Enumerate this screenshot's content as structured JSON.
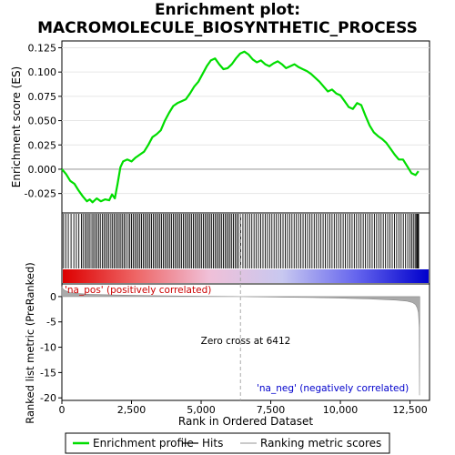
{
  "title_line1": "Enrichment plot:",
  "title_line2": "MACROMOLECULE_BIOSYNTHETIC_PROCESS",
  "colors": {
    "profile": "#00dd00",
    "hits": "#000000",
    "pos_label": "#cc0000",
    "neg_label": "#0000cc",
    "metric_fill": "#aaaaaa",
    "zero_line": "#aaaaaa"
  },
  "chart_data": [
    {
      "type": "line",
      "name": "enrichment-profile",
      "ylabel": "Enrichment score (ES)",
      "xlim": [
        0,
        13200
      ],
      "ylim": [
        -0.045,
        0.132
      ],
      "yticks": [
        -0.025,
        0.0,
        0.025,
        0.05,
        0.075,
        0.1,
        0.125
      ],
      "ytick_labels": [
        "-0.025",
        "0.000",
        "0.025",
        "0.050",
        "0.075",
        "0.100",
        "0.125"
      ],
      "series": [
        {
          "name": "Enrichment profile",
          "x": [
            0,
            150,
            300,
            450,
            600,
            750,
            900,
            1000,
            1100,
            1250,
            1400,
            1550,
            1700,
            1800,
            1900,
            2000,
            2100,
            2200,
            2350,
            2500,
            2650,
            2800,
            2950,
            3100,
            3250,
            3400,
            3550,
            3700,
            3850,
            4000,
            4150,
            4300,
            4450,
            4600,
            4750,
            4900,
            5050,
            5200,
            5350,
            5500,
            5650,
            5800,
            5950,
            6100,
            6250,
            6400,
            6550,
            6700,
            6850,
            7000,
            7150,
            7300,
            7450,
            7600,
            7750,
            7900,
            8050,
            8200,
            8350,
            8500,
            8650,
            8800,
            8950,
            9100,
            9250,
            9400,
            9550,
            9700,
            9850,
            10000,
            10150,
            10300,
            10450,
            10600,
            10750,
            10900,
            11050,
            11200,
            11350,
            11500,
            11650,
            11800,
            11950,
            12100,
            12250,
            12400,
            12550,
            12700,
            12800
          ],
          "y": [
            0.0,
            -0.005,
            -0.012,
            -0.015,
            -0.022,
            -0.028,
            -0.033,
            -0.031,
            -0.034,
            -0.03,
            -0.033,
            -0.031,
            -0.032,
            -0.026,
            -0.03,
            -0.015,
            0.002,
            0.008,
            0.01,
            0.008,
            0.012,
            0.015,
            0.018,
            0.025,
            0.033,
            0.036,
            0.04,
            0.05,
            0.058,
            0.065,
            0.068,
            0.07,
            0.072,
            0.078,
            0.085,
            0.09,
            0.098,
            0.106,
            0.112,
            0.114,
            0.108,
            0.103,
            0.104,
            0.108,
            0.114,
            0.119,
            0.121,
            0.118,
            0.113,
            0.11,
            0.112,
            0.108,
            0.106,
            0.109,
            0.111,
            0.108,
            0.104,
            0.106,
            0.108,
            0.105,
            0.103,
            0.101,
            0.098,
            0.094,
            0.09,
            0.085,
            0.08,
            0.082,
            0.078,
            0.076,
            0.07,
            0.064,
            0.062,
            0.068,
            0.066,
            0.055,
            0.045,
            0.038,
            0.034,
            0.031,
            0.027,
            0.021,
            0.015,
            0.01,
            0.01,
            0.003,
            -0.004,
            -0.006,
            -0.002
          ]
        }
      ]
    },
    {
      "type": "heatmap",
      "name": "hits-and-rank-colorbar",
      "hit_positions": [
        5,
        60,
        140,
        230,
        330,
        430,
        520,
        610,
        700,
        760,
        830,
        890,
        950,
        1010,
        1080,
        1140,
        1200,
        1260,
        1320,
        1380,
        1450,
        1510,
        1570,
        1630,
        1690,
        1760,
        1820,
        1880,
        1940,
        2000,
        2060,
        2120,
        2180,
        2240,
        2300,
        2380,
        2440,
        2500,
        2560,
        2620,
        2680,
        2740,
        2800,
        2860,
        2920,
        2980,
        3040,
        3100,
        3160,
        3220,
        3280,
        3340,
        3400,
        3460,
        3520,
        3580,
        3640,
        3700,
        3760,
        3820,
        3880,
        3940,
        4000,
        4060,
        4120,
        4180,
        4240,
        4300,
        4360,
        4420,
        4480,
        4540,
        4600,
        4660,
        4720,
        4780,
        4840,
        4900,
        4960,
        5020,
        5080,
        5140,
        5200,
        5260,
        5320,
        5380,
        5440,
        5500,
        5560,
        5620,
        5680,
        5740,
        5800,
        5860,
        5920,
        5980,
        6040,
        6100,
        6160,
        6220,
        6280,
        6340,
        6420,
        6500,
        6580,
        6660,
        6740,
        6820,
        6900,
        6980,
        7060,
        7140,
        7220,
        7300,
        7380,
        7460,
        7540,
        7620,
        7700,
        7780,
        7860,
        7940,
        8020,
        8100,
        8180,
        8260,
        8340,
        8420,
        8500,
        8580,
        8660,
        8740,
        8820,
        8900,
        8980,
        9060,
        9140,
        9220,
        9300,
        9380,
        9460,
        9540,
        9620,
        9700,
        9780,
        9860,
        9940,
        10020,
        10100,
        10180,
        10260,
        10340,
        10420,
        10500,
        10580,
        10660,
        10740,
        10820,
        10900,
        10980,
        11060,
        11140,
        11220,
        11300,
        11380,
        11460,
        11540,
        11620,
        11700,
        11780,
        11860,
        11940,
        12020,
        12100,
        12180,
        12260,
        12340,
        12420,
        12500,
        12560,
        12620,
        12680,
        12720,
        12760,
        12790,
        12810
      ],
      "rank_gradient": [
        "#dd0000",
        "#ee6666",
        "#f0c0d8",
        "#c8c8f0",
        "#6666ee",
        "#0000cc"
      ],
      "xlim": [
        0,
        13200
      ]
    },
    {
      "type": "area",
      "name": "ranked-list-metric",
      "ylabel": "Ranked list metric (PreRanked)",
      "xlabel": "Rank in Ordered Dataset",
      "xlim": [
        0,
        13200
      ],
      "ylim": [
        -20.5,
        2.5
      ],
      "yticks": [
        0,
        -5,
        -10,
        -15,
        -20
      ],
      "ytick_labels": [
        "0",
        "-5",
        "-10",
        "-15",
        "-20"
      ],
      "xticks": [
        0,
        2500,
        5000,
        7500,
        10000,
        12500
      ],
      "xtick_labels": [
        "0",
        "2,500",
        "5,000",
        "7,500",
        "10,000",
        "12,500"
      ],
      "series": [
        {
          "name": "Ranking metric scores",
          "x": [
            0,
            50,
            150,
            300,
            600,
            1000,
            2000,
            3000,
            4000,
            5000,
            6000,
            6412,
            7000,
            8000,
            9000,
            10000,
            11000,
            12000,
            12400,
            12600,
            12700,
            12760,
            12800,
            12830,
            12840,
            12850
          ],
          "y": [
            2.0,
            1.4,
            1.1,
            0.8,
            0.6,
            0.45,
            0.3,
            0.2,
            0.12,
            0.07,
            0.02,
            0.0,
            -0.05,
            -0.12,
            -0.2,
            -0.3,
            -0.45,
            -0.7,
            -0.9,
            -1.2,
            -1.6,
            -2.2,
            -3.2,
            -6.0,
            -19.5,
            0
          ]
        }
      ],
      "annotations": {
        "pos_label": "'na_pos' (positively correlated)",
        "neg_label": "'na_neg' (negatively correlated)",
        "zero_cross_label": "Zero cross at 6412",
        "zero_cross": 6412
      }
    }
  ],
  "legend": {
    "items": [
      {
        "label": "Enrichment profile",
        "color": "#00dd00"
      },
      {
        "label": "Hits",
        "color": "#000000"
      },
      {
        "label": "Ranking metric scores",
        "color": "#aaaaaa"
      }
    ]
  }
}
